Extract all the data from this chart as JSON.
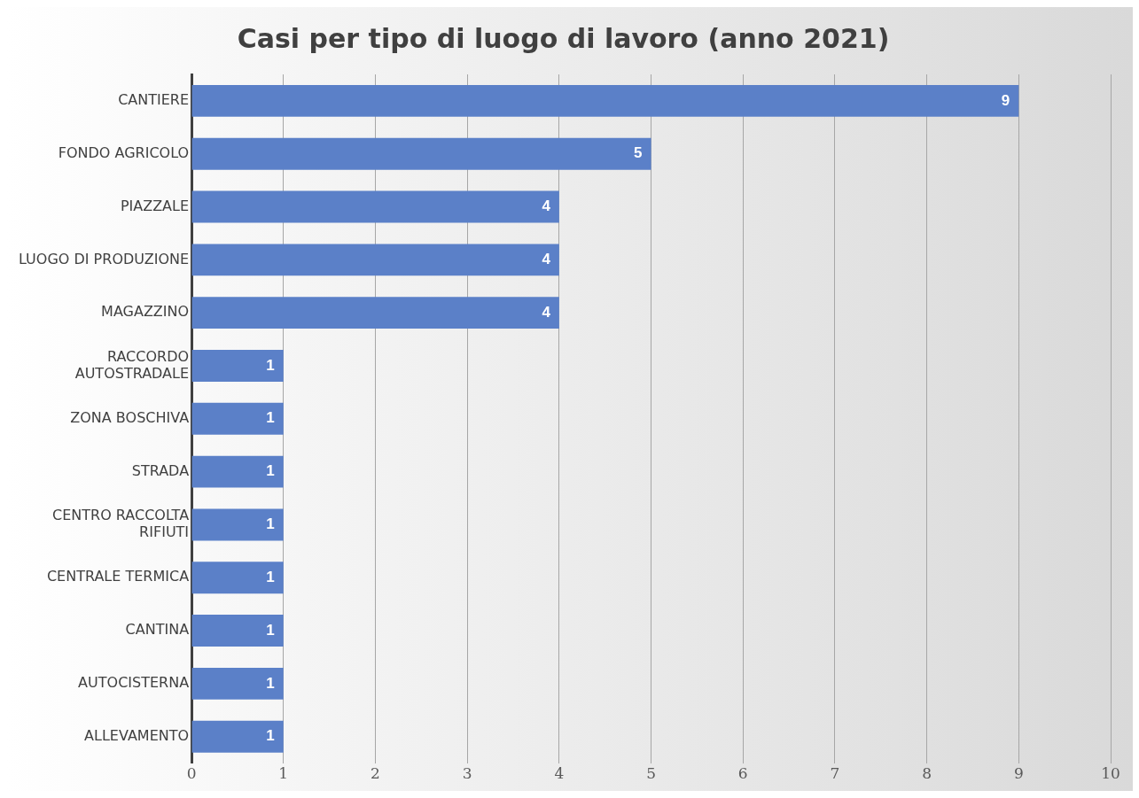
{
  "chart_data": {
    "type": "bar",
    "orientation": "horizontal",
    "title": "Casi per tipo di luogo di lavoro (anno 2021)",
    "categories": [
      "CANTIERE",
      "FONDO AGRICOLO",
      "PIAZZALE",
      "LUOGO DI PRODUZIONE",
      "MAGAZZINO",
      "RACCORDO AUTOSTRADALE",
      "ZONA BOSCHIVA",
      "STRADA",
      "CENTRO RACCOLTA RIFIUTI",
      "CENTRALE TERMICA",
      "CANTINA",
      "AUTOCISTERNA",
      "ALLEVAMENTO"
    ],
    "values": [
      9,
      5,
      4,
      4,
      4,
      1,
      1,
      1,
      1,
      1,
      1,
      1,
      1
    ],
    "color": "#5b80c8",
    "xlim": [
      0,
      10
    ],
    "xticks": [
      0,
      1,
      2,
      3,
      4,
      5,
      6,
      7,
      8,
      9,
      10
    ],
    "grid": "x",
    "data_labels": true
  }
}
